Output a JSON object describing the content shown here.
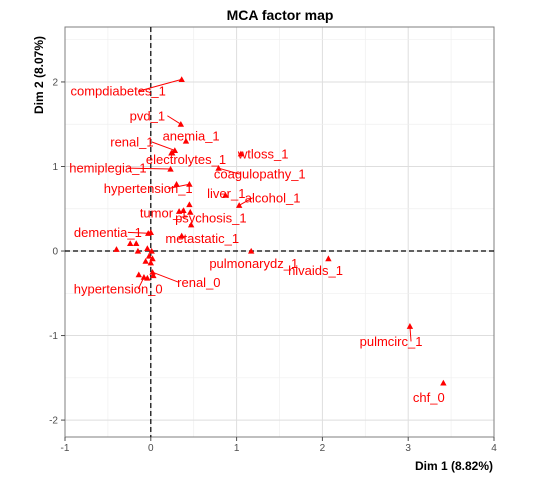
{
  "chart_data": {
    "type": "scatter",
    "title": "MCA factor map",
    "xlabel": "Dim 1 (8.82%)",
    "ylabel": "Dim 2 (8.07%)",
    "xlim": [
      -1,
      4
    ],
    "ylim": [
      -2.2,
      2.65
    ],
    "xticks": [
      -1,
      0,
      1,
      2,
      3,
      4
    ],
    "yticks": [
      -2,
      -1,
      0,
      1,
      2
    ],
    "grid": true,
    "reference_lines": {
      "x": 0,
      "y": 0,
      "style": "dashed"
    },
    "point_color": "#ff0000",
    "labeled_points": [
      {
        "label": "compdiabetes_1",
        "x": 0.36,
        "y": 2.03,
        "label_x": -0.38,
        "label_y": 1.89
      },
      {
        "label": "pvd_1",
        "x": 0.35,
        "y": 1.5,
        "label_x": -0.04,
        "label_y": 1.6
      },
      {
        "label": "anemia_1",
        "x": 0.41,
        "y": 1.3,
        "label_x": 0.47,
        "label_y": 1.36
      },
      {
        "label": "renal_1",
        "x": 0.28,
        "y": 1.19,
        "label_x": -0.22,
        "label_y": 1.29
      },
      {
        "label": "wtloss_1",
        "x": 1.05,
        "y": 1.15,
        "label_x": 1.31,
        "label_y": 1.15
      },
      {
        "label": "electrolytes_1",
        "x": 0.24,
        "y": 1.16,
        "label_x": 0.41,
        "label_y": 1.08
      },
      {
        "label": "hemiplegia_1",
        "x": 0.23,
        "y": 0.97,
        "label_x": -0.5,
        "label_y": 0.98
      },
      {
        "label": "coagulopathy_1",
        "x": 0.79,
        "y": 0.98,
        "label_x": 1.27,
        "label_y": 0.91
      },
      {
        "label": "hypertension_1",
        "x": 0.45,
        "y": 0.79,
        "label_x": -0.03,
        "label_y": 0.74
      },
      {
        "label": "liver_1",
        "x": 0.87,
        "y": 0.66,
        "label_x": 0.88,
        "label_y": 0.68
      },
      {
        "label": "alcohol_1",
        "x": 1.03,
        "y": 0.54,
        "label_x": 1.42,
        "label_y": 0.63
      },
      {
        "label": "tumor_1",
        "x": 0.33,
        "y": 0.47,
        "label_x": 0.15,
        "label_y": 0.45
      },
      {
        "label": "psychosis_1",
        "x": 0.46,
        "y": 0.46,
        "label_x": 0.7,
        "label_y": 0.39
      },
      {
        "label": "dementia_1",
        "x": -0.03,
        "y": 0.21,
        "label_x": -0.5,
        "label_y": 0.22
      },
      {
        "label": "metastatic_1",
        "x": 0.36,
        "y": 0.18,
        "label_x": 0.6,
        "label_y": 0.15
      },
      {
        "label": "pulmonarydz_1",
        "x": 1.17,
        "y": 0.0,
        "label_x": 1.2,
        "label_y": -0.15
      },
      {
        "label": "hivaids_1",
        "x": 2.07,
        "y": -0.09,
        "label_x": 1.92,
        "label_y": -0.23
      },
      {
        "label": "renal_0",
        "x": 0.02,
        "y": -0.25,
        "label_x": 0.56,
        "label_y": -0.37
      },
      {
        "label": "hypertension_0",
        "x": -0.08,
        "y": -0.31,
        "label_x": -0.38,
        "label_y": -0.45
      },
      {
        "label": "pulmcirc_1",
        "x": 3.02,
        "y": -0.89,
        "label_x": 2.8,
        "label_y": -1.07
      },
      {
        "label": "chf_0",
        "x": 3.41,
        "y": -1.56,
        "label_x": 3.24,
        "label_y": -1.73
      }
    ],
    "unlabeled_points": [
      {
        "x": 0.25,
        "y": 1.16
      },
      {
        "x": 0.3,
        "y": 0.79
      },
      {
        "x": 0.38,
        "y": 0.48
      },
      {
        "x": 0.45,
        "y": 0.55
      },
      {
        "x": 0.47,
        "y": 0.31
      },
      {
        "x": 0.0,
        "y": 0.22
      },
      {
        "x": -0.4,
        "y": 0.02
      },
      {
        "x": -0.24,
        "y": 0.09
      },
      {
        "x": -0.17,
        "y": 0.09
      },
      {
        "x": -0.15,
        "y": 0.0
      },
      {
        "x": -0.04,
        "y": 0.03
      },
      {
        "x": 0.01,
        "y": 0.0
      },
      {
        "x": -0.02,
        "y": -0.06
      },
      {
        "x": 0.02,
        "y": -0.09
      },
      {
        "x": -0.06,
        "y": -0.12
      },
      {
        "x": 0.0,
        "y": -0.14
      },
      {
        "x": -0.14,
        "y": -0.28
      },
      {
        "x": 0.03,
        "y": -0.29
      },
      {
        "x": -0.04,
        "y": -0.32
      }
    ]
  }
}
